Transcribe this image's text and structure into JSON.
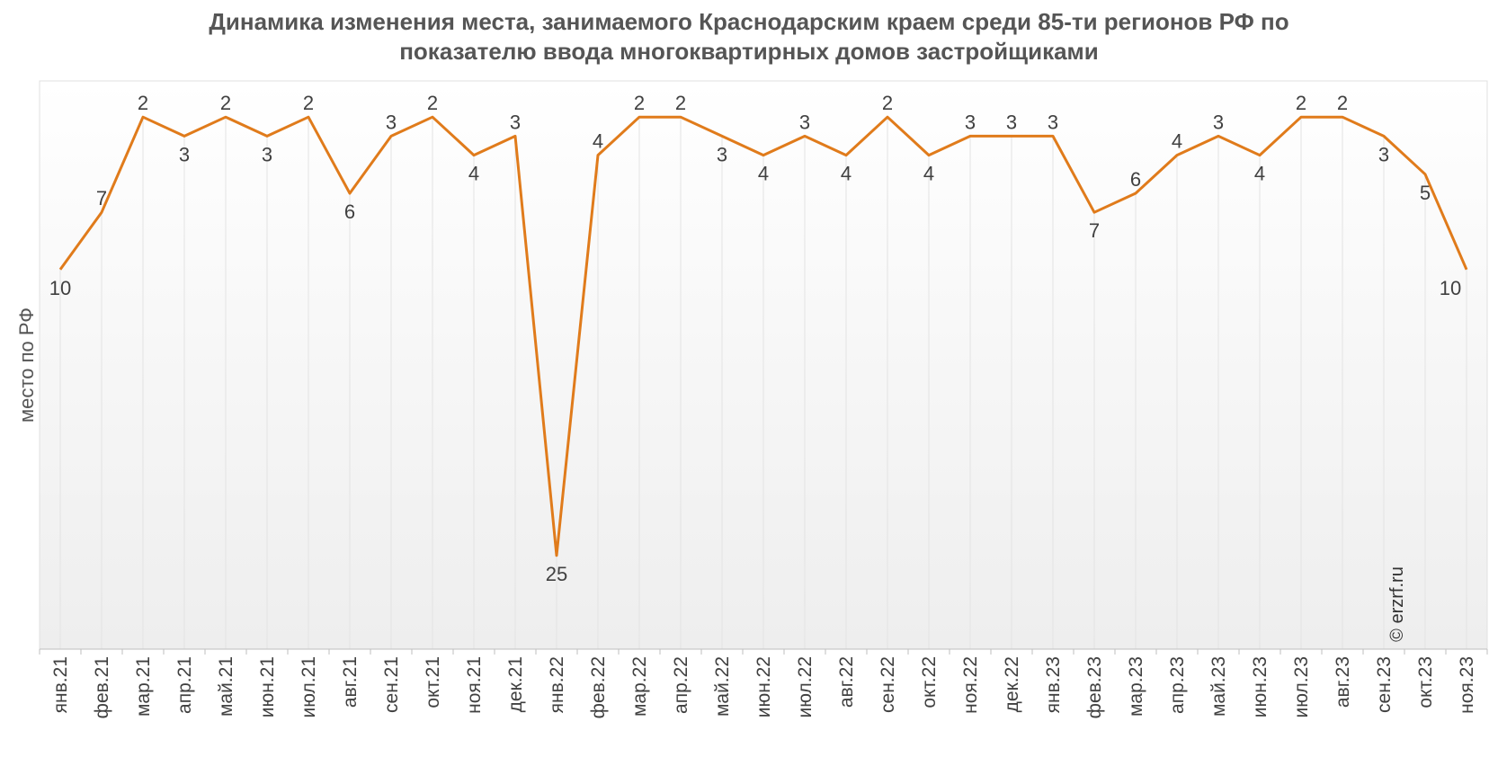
{
  "chart_data": {
    "type": "line",
    "title_line1": "Динамика изменения места, занимаемого Краснодарским краем среди 85-ти регионов РФ по",
    "title_line2": "показателю ввода многоквартирных домов застройщиками",
    "ylabel": "место по РФ",
    "y_inverted": true,
    "ylim": [
      1,
      30
    ],
    "grid": "vertical",
    "credit": "© erzrf.ru",
    "line_color": "#E07B1B",
    "categories": [
      "янв.21",
      "фев.21",
      "мар.21",
      "апр.21",
      "май.21",
      "июн.21",
      "июл.21",
      "авг.21",
      "сен.21",
      "окт.21",
      "ноя.21",
      "дек.21",
      "янв.22",
      "фев.22",
      "мар.22",
      "апр.22",
      "май.22",
      "июн.22",
      "июл.22",
      "авг.22",
      "сен.22",
      "окт.22",
      "ноя.22",
      "дек.22",
      "янв.23",
      "фев.23",
      "мар.23",
      "апр.23",
      "май.23",
      "июн.23",
      "июл.23",
      "авг.23",
      "сен.23",
      "окт.23",
      "ноя.23"
    ],
    "values": [
      10,
      7,
      2,
      3,
      2,
      3,
      2,
      6,
      3,
      2,
      4,
      3,
      25,
      4,
      2,
      2,
      3,
      4,
      3,
      4,
      2,
      4,
      3,
      3,
      3,
      7,
      6,
      4,
      3,
      4,
      2,
      2,
      3,
      5,
      10
    ]
  }
}
